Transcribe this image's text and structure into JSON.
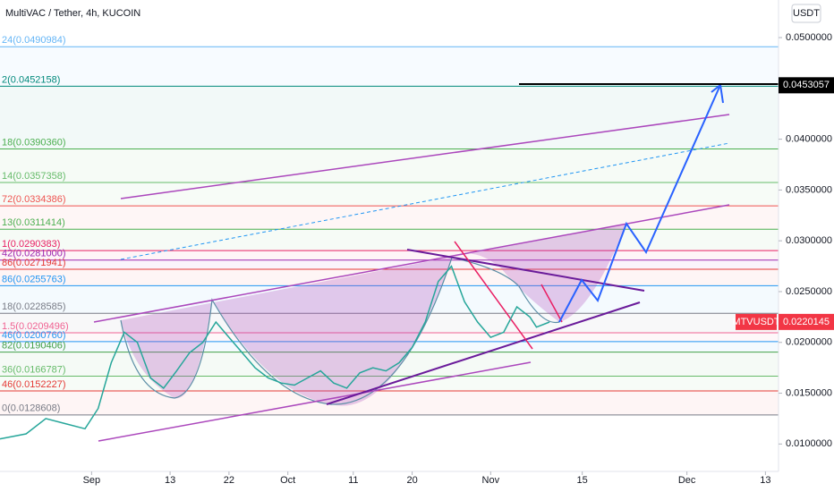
{
  "chart_data": {
    "type": "line",
    "title": "MultiVAC / Tether, 4h, KUCOIN",
    "currency": "USDT",
    "symbol": "MTVUSDT",
    "last_price": 0.0220145,
    "target_price": 0.0453057,
    "xlim": [
      -14,
      105
    ],
    "ylim": [
      0.0073,
      0.0537
    ],
    "xticks": [
      {
        "value": 0,
        "label": "Sep"
      },
      {
        "value": 12,
        "label": "13"
      },
      {
        "value": 21,
        "label": "22"
      },
      {
        "value": 30,
        "label": "Oct"
      },
      {
        "value": 40,
        "label": "11"
      },
      {
        "value": 49,
        "label": "20"
      },
      {
        "value": 61,
        "label": "Nov"
      },
      {
        "value": 75,
        "label": "15"
      },
      {
        "value": 91,
        "label": "Dec"
      },
      {
        "value": 103,
        "label": "13"
      }
    ],
    "yticks": [
      {
        "value": 0.01,
        "label": "0.0100000"
      },
      {
        "value": 0.015,
        "label": "0.0150000"
      },
      {
        "value": 0.02,
        "label": "0.0200000"
      },
      {
        "value": 0.025,
        "label": "0.0250000"
      },
      {
        "value": 0.03,
        "label": "0.0300000"
      },
      {
        "value": 0.035,
        "label": "0.0350000"
      },
      {
        "value": 0.04,
        "label": "0.0400000"
      },
      {
        "value": 0.045,
        "label": "0.0450000"
      },
      {
        "value": 0.05,
        "label": "0.0500000"
      }
    ],
    "levels": [
      {
        "value": 0.0490984,
        "label": "24(0.0490984)",
        "color": "#64b5f6"
      },
      {
        "value": 0.0452158,
        "label": "2(0.0452158)",
        "color": "#00897b"
      },
      {
        "value": 0.039036,
        "label": "18(0.0390360)",
        "color": "#4caf50"
      },
      {
        "value": 0.0357358,
        "label": "14(0.0357358)",
        "color": "#66bb6a"
      },
      {
        "value": 0.0334386,
        "label": "72(0.0334386)",
        "color": "#ef5350"
      },
      {
        "value": 0.0311414,
        "label": "13(0.0311414)",
        "color": "#4caf50"
      },
      {
        "value": 0.0290383,
        "label": "1(0.0290383)",
        "color": "#e91e63"
      },
      {
        "value": 0.0281,
        "label": "42(0.0281000)",
        "color": "#9c27b0"
      },
      {
        "value": 0.0271941,
        "label": "86(0.0271941)",
        "color": "#e53935"
      },
      {
        "value": 0.0255763,
        "label": "86(0.0255763)",
        "color": "#2196f3"
      },
      {
        "value": 0.0228585,
        "label": "18(0.0228585)",
        "color": "#787b86"
      },
      {
        "value": 0.0209496,
        "label": "1.5(0.0209496)",
        "color": "#f06292"
      },
      {
        "value": 0.020076,
        "label": "46(0.0200760)",
        "color": "#2196f3"
      },
      {
        "value": 0.0190406,
        "label": "82(0.0190406)",
        "color": "#43a047"
      },
      {
        "value": 0.0166787,
        "label": "36(0.0166787)",
        "color": "#66bb6a"
      },
      {
        "value": 0.0152227,
        "label": "46(0.0152227)",
        "color": "#e53935"
      },
      {
        "value": 0.0128608,
        "label": "0(0.0128608)",
        "color": "#787b86"
      }
    ],
    "x": [
      -14,
      -10,
      -7,
      -4,
      -1,
      1,
      3,
      5,
      7,
      9,
      11,
      13,
      15,
      17,
      19,
      21,
      23,
      25,
      27,
      29,
      31,
      33,
      35,
      37,
      39,
      41,
      43,
      45,
      47,
      49,
      51,
      53,
      55,
      57,
      59,
      61,
      63,
      65,
      67,
      68,
      70
    ],
    "series": [
      {
        "color": "#26a69a",
        "values": [
          0.0105,
          0.011,
          0.0125,
          0.012,
          0.0115,
          0.0135,
          0.018,
          0.021,
          0.02,
          0.0165,
          0.0155,
          0.0172,
          0.019,
          0.02,
          0.022,
          0.0205,
          0.019,
          0.0175,
          0.0165,
          0.016,
          0.0158,
          0.0165,
          0.0172,
          0.016,
          0.0155,
          0.017,
          0.0175,
          0.0172,
          0.018,
          0.0195,
          0.022,
          0.026,
          0.0275,
          0.024,
          0.022,
          0.0205,
          0.021,
          0.0235,
          0.0225,
          0.0215,
          0.022
        ]
      }
    ]
  }
}
